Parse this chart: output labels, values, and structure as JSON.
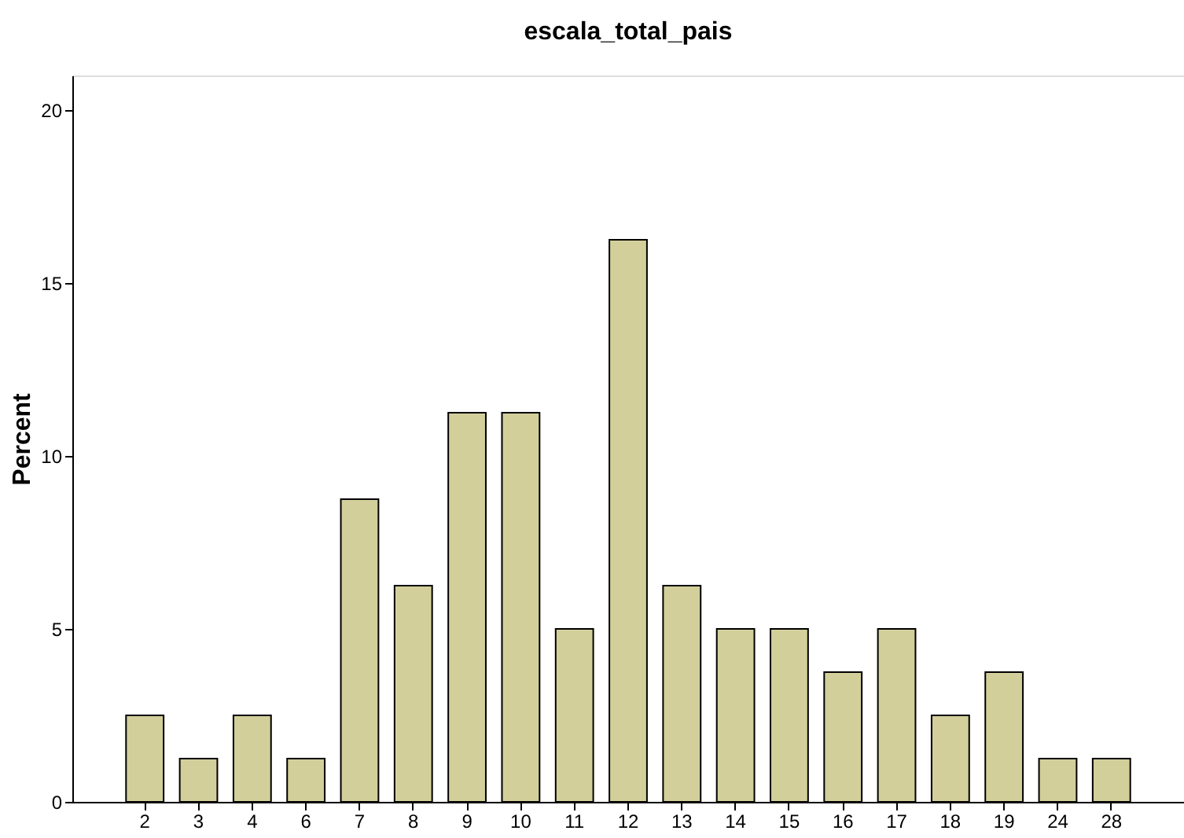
{
  "chart_data": {
    "type": "bar",
    "title": "escala_total_pais",
    "ylabel": "Percent",
    "categories": [
      "2",
      "3",
      "4",
      "6",
      "7",
      "8",
      "9",
      "10",
      "11",
      "12",
      "13",
      "14",
      "15",
      "16",
      "17",
      "18",
      "19",
      "24",
      "28"
    ],
    "values": [
      2.5,
      1.25,
      2.5,
      1.25,
      8.75,
      6.25,
      11.25,
      11.25,
      5,
      16.25,
      6.25,
      5,
      5,
      3.75,
      5,
      2.5,
      3.75,
      1.25,
      1.25
    ],
    "color": "#d3cf9b",
    "ylim": [
      0,
      21
    ],
    "yticks": [
      0,
      5,
      10,
      15,
      20
    ],
    "grid": false
  }
}
